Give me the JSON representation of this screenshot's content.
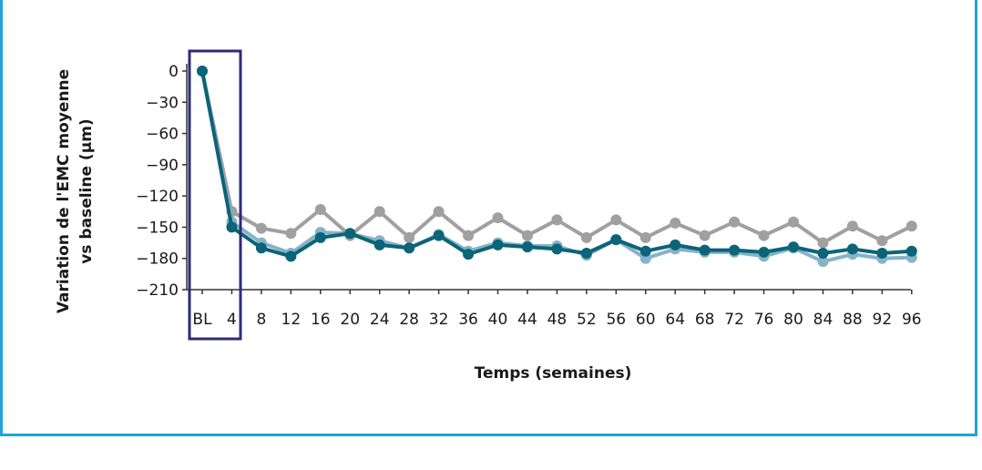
{
  "chart_data": {
    "type": "line",
    "xlabel": "Temps (semaines)",
    "ylabel_line1": "Variation de l'EMC moyenne",
    "ylabel_line2": "vs baseline (µm)",
    "x": [
      "BL",
      "4",
      "8",
      "12",
      "16",
      "20",
      "24",
      "28",
      "32",
      "36",
      "40",
      "44",
      "48",
      "52",
      "56",
      "60",
      "64",
      "68",
      "72",
      "76",
      "80",
      "84",
      "88",
      "92",
      "96"
    ],
    "yticks": [
      0,
      -30,
      -60,
      -90,
      -120,
      -150,
      -180,
      -210
    ],
    "ylim": [
      -210,
      0
    ],
    "highlight_range": [
      "BL",
      "4"
    ],
    "series": [
      {
        "color": "#a0a0a0",
        "values": [
          0,
          -135,
          -151,
          -156,
          -133,
          -158,
          -135,
          -160,
          -135,
          -158,
          -141,
          -158,
          -143,
          -160,
          -143,
          -160,
          -146,
          -158,
          -145,
          -158,
          -145,
          -165,
          -149,
          -163,
          -149
        ]
      },
      {
        "color": "#86b3c8",
        "values": [
          0,
          -145,
          -165,
          -175,
          -155,
          -156,
          -163,
          -170,
          -157,
          -173,
          -165,
          -168,
          -168,
          -177,
          -162,
          -180,
          -171,
          -174,
          -174,
          -178,
          -170,
          -183,
          -176,
          -180,
          -179
        ]
      },
      {
        "color": "#0b6478",
        "values": [
          0,
          -150,
          -170,
          -178,
          -160,
          -156,
          -167,
          -170,
          -158,
          -176,
          -167,
          -169,
          -171,
          -175,
          -162,
          -173,
          -167,
          -172,
          -172,
          -174,
          -169,
          -175,
          -171,
          -175,
          -173
        ]
      }
    ]
  },
  "colors": {
    "frame": "#1ea3db",
    "highlight_box": "#2f2a78",
    "axis": "#333333"
  }
}
